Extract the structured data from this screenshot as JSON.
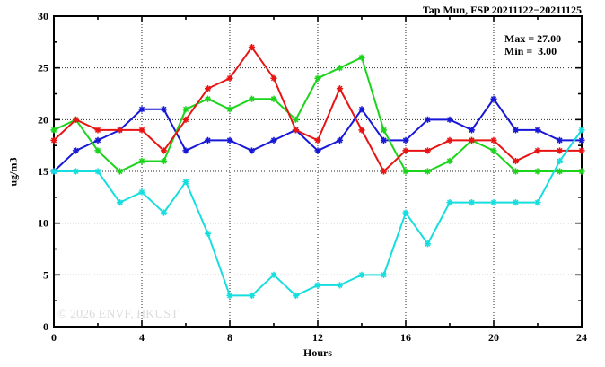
{
  "window": {
    "background": "#ffffff"
  },
  "chart_data": {
    "type": "line",
    "title": "Tap Mun, FSP 20211122−20211125",
    "xlabel": "Hours",
    "ylabel": "ug/m3",
    "xlim": [
      0,
      24
    ],
    "ylim": [
      0,
      30
    ],
    "xticks_major": [
      0,
      4,
      8,
      12,
      16,
      20,
      24
    ],
    "xticks_minor": [
      2,
      6,
      10,
      14,
      18,
      22
    ],
    "yticks_major": [
      0,
      5,
      10,
      15,
      20,
      25,
      30
    ],
    "yticks_minor": [
      2.5,
      7.5,
      12.5,
      17.5,
      22.5,
      27.5
    ],
    "grid": {
      "x_at": [
        4,
        8,
        12,
        16,
        20
      ],
      "y_at": [
        5,
        10,
        15,
        20,
        25
      ],
      "style": "dotted"
    },
    "legend": "none",
    "x": [
      0,
      1,
      2,
      3,
      4,
      5,
      6,
      7,
      8,
      9,
      10,
      11,
      12,
      13,
      14,
      15,
      16,
      17,
      18,
      19,
      20,
      21,
      22,
      23,
      24
    ],
    "series": [
      {
        "name": "blue",
        "color": "#1717d6",
        "values": [
          15,
          17,
          18,
          19,
          21,
          21,
          17,
          18,
          18,
          17,
          18,
          19,
          17,
          18,
          21,
          18,
          18,
          20,
          20,
          19,
          22,
          19,
          19,
          18,
          18
        ]
      },
      {
        "name": "green",
        "color": "#1bd41b",
        "values": [
          19,
          20,
          17,
          15,
          16,
          16,
          21,
          22,
          21,
          22,
          22,
          20,
          24,
          25,
          26,
          19,
          15,
          15,
          16,
          18,
          17,
          15,
          15,
          15,
          15
        ]
      },
      {
        "name": "red",
        "color": "#e81414",
        "values": [
          18,
          20,
          19,
          19,
          19,
          17,
          20,
          23,
          24,
          27,
          24,
          19,
          18,
          23,
          19,
          15,
          17,
          17,
          18,
          18,
          18,
          16,
          17,
          17,
          17
        ]
      },
      {
        "name": "cyan",
        "color": "#17dede",
        "values": [
          15,
          15,
          15,
          12,
          13,
          11,
          14,
          9,
          3,
          3,
          5,
          3,
          4,
          4,
          5,
          5,
          11,
          8,
          12,
          12,
          12,
          12,
          12,
          16,
          19
        ]
      }
    ],
    "annotations": {
      "max_label": "Max = 27.00",
      "min_label": "Min =  3.00"
    },
    "watermark": "© 2026 ENVF, HKUST"
  }
}
